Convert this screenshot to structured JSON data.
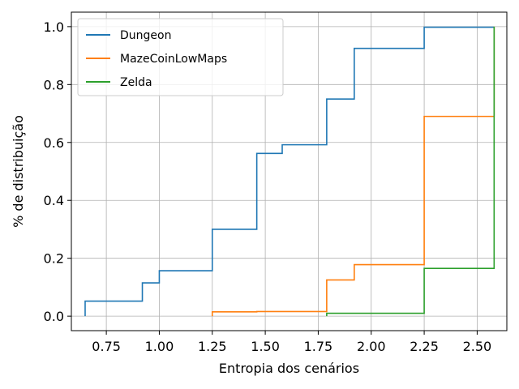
{
  "chart_data": {
    "type": "line",
    "step": "post",
    "xlabel": "Entropia dos cenários",
    "ylabel": "% de distribuição",
    "xlim": [
      0.585,
      2.64
    ],
    "ylim": [
      -0.05,
      1.05
    ],
    "xticks": [
      0.75,
      1.0,
      1.25,
      1.5,
      1.75,
      2.0,
      2.25,
      2.5
    ],
    "xtick_labels": [
      "0.75",
      "1.00",
      "1.25",
      "1.50",
      "1.75",
      "2.00",
      "2.25",
      "2.50"
    ],
    "yticks": [
      0.0,
      0.2,
      0.4,
      0.6,
      0.8,
      1.0
    ],
    "ytick_labels": [
      "0.0",
      "0.2",
      "0.4",
      "0.6",
      "0.8",
      "1.0"
    ],
    "grid": true,
    "legend_position": "top-left",
    "series": [
      {
        "name": "Dungeon",
        "color": "#1f77b4",
        "x": [
          0.65,
          0.65,
          0.92,
          1.0,
          1.25,
          1.46,
          1.58,
          1.79,
          1.92,
          2.25,
          2.58
        ],
        "y": [
          0.0,
          0.052,
          0.115,
          0.157,
          0.3,
          0.562,
          0.592,
          0.75,
          0.925,
          0.998,
          0.998
        ]
      },
      {
        "name": "MazeCoinLowMaps",
        "color": "#ff7f0e",
        "x": [
          1.25,
          1.25,
          1.46,
          1.79,
          1.92,
          2.25,
          2.58,
          2.58
        ],
        "y": [
          0.0,
          0.015,
          0.016,
          0.125,
          0.178,
          0.69,
          0.69,
          1.0
        ]
      },
      {
        "name": "Zelda",
        "color": "#2ca02c",
        "x": [
          1.79,
          1.79,
          2.25,
          2.58,
          2.58
        ],
        "y": [
          0.0,
          0.01,
          0.165,
          0.165,
          1.0
        ]
      }
    ]
  }
}
